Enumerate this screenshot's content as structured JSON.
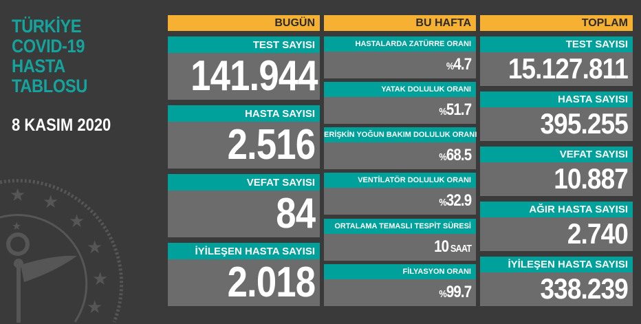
{
  "title_lines": [
    "TÜRKİYE",
    "COVID-19",
    "HASTA",
    "TABLOSU"
  ],
  "date": "8 KASIM 2020",
  "colors": {
    "background": "#3a3a3a",
    "teal": "#00a19a",
    "orange": "#f6b133",
    "card": "#6c6c6c"
  },
  "today": {
    "header": "BUGÜN",
    "items": [
      {
        "label": "TEST SAYISI",
        "value": "141.944"
      },
      {
        "label": "HASTA SAYISI",
        "value": "2.516"
      },
      {
        "label": "VEFAT SAYISI",
        "value": "84"
      },
      {
        "label": "İYİLEŞEN HASTA SAYISI",
        "value": "2.018"
      }
    ]
  },
  "week": {
    "header": "BU HAFTA",
    "items": [
      {
        "label": "HASTALARDA ZATÜRRE ORANI",
        "prefix": "%",
        "value": "4.7",
        "suffix": ""
      },
      {
        "label": "YATAK DOLULUK ORANI",
        "prefix": "%",
        "value": "51.7",
        "suffix": ""
      },
      {
        "label": "ERİŞKİN YOĞUN BAKIM DOLULUK ORANI",
        "prefix": "%",
        "value": "68.5",
        "suffix": ""
      },
      {
        "label": "VENTİLATÖR DOLULUK ORANI",
        "prefix": "%",
        "value": "32.9",
        "suffix": ""
      },
      {
        "label": "ORTALAMA TEMASLI TESPİT SÜRESİ",
        "prefix": "",
        "value": "10",
        "suffix": " SAAT"
      },
      {
        "label": "FİLYASYON ORANI",
        "prefix": "%",
        "value": "99.7",
        "suffix": ""
      }
    ]
  },
  "total": {
    "header": "TOPLAM",
    "items": [
      {
        "label": "TEST SAYISI",
        "value": "15.127.811"
      },
      {
        "label": "HASTA SAYISI",
        "value": "395.255"
      },
      {
        "label": "VEFAT SAYISI",
        "value": "10.887"
      },
      {
        "label": "AĞIR HASTA SAYISI",
        "value": "2.740"
      },
      {
        "label": "İYİLEŞEN HASTA SAYISI",
        "value": "338.239"
      }
    ]
  }
}
